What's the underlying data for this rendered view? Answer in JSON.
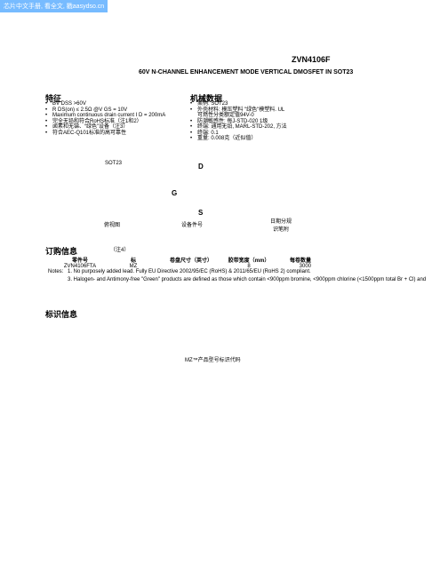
{
  "headerBar": "芯片中文手册, 看全文, 戳aasydso.cn",
  "partNumber": "ZVN4106F",
  "title": "60V N-CHANNEL ENHANCEMENT MODE VERTICAL DMOSFET IN SOT23",
  "featuresHeading": "特征",
  "mechDataHeading": "机械数据",
  "features": {
    "f1": "BV DSS >60V",
    "f2": "R DS(on) ≤ 2.5Ω @V GS = 10V",
    "f3": "Maximum continuous drain current I D = 200mA",
    "f4": "完全无铅和符合RoHS标准（注1和2）",
    "f5": "卤素和无锑、“绿色”设备（注3）",
    "f6": "符合AEC-Q101标准的高可靠性"
  },
  "mechdata": {
    "m1": "案例: SOT23",
    "m2": "外壳材料: 模压塑料 \"绿色\"模塑料. UL",
    "m3": "可燃性分类额定值94V-0",
    "m4": "防潮敏感性: 每J-STD-020 1级",
    "m5": "终端: 通用无铅, MARL-STD-202, 方法",
    "m6": "终端: 0.1",
    "m7": "重量: 0.008克（近似值）"
  },
  "sot23Label": "SOT23",
  "dLabel": "D",
  "gLabel": "G",
  "sLabel": "S",
  "bottomView": "俯视图",
  "devNo": "设备件号",
  "dateCode1": "日期分规",
  "dateCode2": "识笔附",
  "orderInfoHeading": "订购信息",
  "note14": "（注4）",
  "orderTable": {
    "headers": {
      "h1": "零件号",
      "h2": "标",
      "h3": "卷盘尺寸（英寸）",
      "h4": "胶带宽度（mm）",
      "h5": "每卷数量"
    },
    "row": {
      "c1": "ZVN4106FTA",
      "c2": "MZ",
      "c3": "",
      "c4": "8",
      "c5": "3000"
    }
  },
  "notesLabel": "Notes:",
  "note1": "1. No purposely added lead. Fully EU Directive 2002/95/EC (RoHS) & 2011/65/EU (RoHS 2) compliant.",
  "note3": "3. Halogen- and Antimony-free \"Green\" products are defined as those which contain <900ppm bromine, <900ppm chlorine (<1500ppm total Br + Cl) and",
  "markingHeading": "标识信息",
  "markingNote": "MZ™产品型号标识代码"
}
